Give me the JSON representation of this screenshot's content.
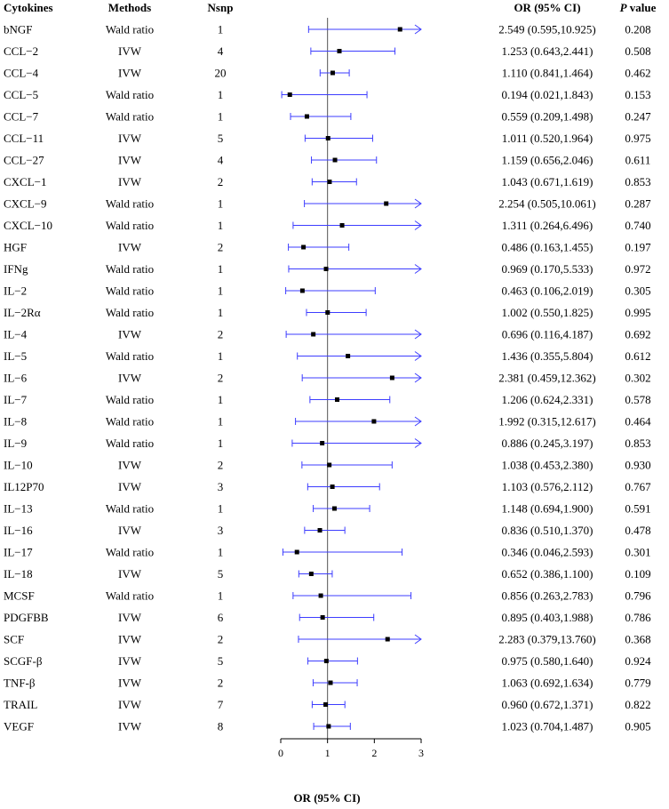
{
  "headers": {
    "cytokines": "Cytokines",
    "methods": "Methods",
    "nsnp": "Nsnp",
    "or": "OR (95% CI)",
    "p_italic": "P",
    "p_rest": " value"
  },
  "colors": {
    "ci_line": "#3d3dff",
    "point": "#000000",
    "ref_line": "#555555"
  },
  "chart_data": {
    "type": "forest",
    "xlabel": "OR (95% CI)",
    "xlim": [
      0,
      3
    ],
    "xticks": [
      "0",
      "1",
      "2",
      "3"
    ],
    "reference_line": 1,
    "rows": [
      {
        "cytokine": "bNGF",
        "method": "Wald ratio",
        "nsnp": "1",
        "or": 2.549,
        "lo": 0.595,
        "hi": 10.925,
        "or_text": "2.549 (0.595,10.925)",
        "p": "0.208"
      },
      {
        "cytokine": "CCL−2",
        "method": "IVW",
        "nsnp": "4",
        "or": 1.253,
        "lo": 0.643,
        "hi": 2.441,
        "or_text": "1.253 (0.643,2.441)",
        "p": "0.508"
      },
      {
        "cytokine": "CCL−4",
        "method": "IVW",
        "nsnp": "20",
        "or": 1.11,
        "lo": 0.841,
        "hi": 1.464,
        "or_text": "1.110 (0.841,1.464)",
        "p": "0.462"
      },
      {
        "cytokine": "CCL−5",
        "method": "Wald ratio",
        "nsnp": "1",
        "or": 0.194,
        "lo": 0.021,
        "hi": 1.843,
        "or_text": "0.194 (0.021,1.843)",
        "p": "0.153"
      },
      {
        "cytokine": "CCL−7",
        "method": "Wald ratio",
        "nsnp": "1",
        "or": 0.559,
        "lo": 0.209,
        "hi": 1.498,
        "or_text": "0.559 (0.209,1.498)",
        "p": "0.247"
      },
      {
        "cytokine": "CCL−11",
        "method": "IVW",
        "nsnp": "5",
        "or": 1.011,
        "lo": 0.52,
        "hi": 1.964,
        "or_text": "1.011 (0.520,1.964)",
        "p": "0.975"
      },
      {
        "cytokine": "CCL−27",
        "method": "IVW",
        "nsnp": "4",
        "or": 1.159,
        "lo": 0.656,
        "hi": 2.046,
        "or_text": "1.159 (0.656,2.046)",
        "p": "0.611"
      },
      {
        "cytokine": "CXCL−1",
        "method": "IVW",
        "nsnp": "2",
        "or": 1.043,
        "lo": 0.671,
        "hi": 1.619,
        "or_text": "1.043 (0.671,1.619)",
        "p": "0.853"
      },
      {
        "cytokine": "CXCL−9",
        "method": "Wald ratio",
        "nsnp": "1",
        "or": 2.254,
        "lo": 0.505,
        "hi": 10.061,
        "or_text": "2.254 (0.505,10.061)",
        "p": "0.287"
      },
      {
        "cytokine": "CXCL−10",
        "method": "Wald ratio",
        "nsnp": "1",
        "or": 1.311,
        "lo": 0.264,
        "hi": 6.496,
        "or_text": "1.311 (0.264,6.496)",
        "p": "0.740"
      },
      {
        "cytokine": "HGF",
        "method": "IVW",
        "nsnp": "2",
        "or": 0.486,
        "lo": 0.163,
        "hi": 1.455,
        "or_text": "0.486 (0.163,1.455)",
        "p": "0.197"
      },
      {
        "cytokine": "IFNg",
        "method": "Wald ratio",
        "nsnp": "1",
        "or": 0.969,
        "lo": 0.17,
        "hi": 5.533,
        "or_text": "0.969 (0.170,5.533)",
        "p": "0.972"
      },
      {
        "cytokine": "IL−2",
        "method": "Wald ratio",
        "nsnp": "1",
        "or": 0.463,
        "lo": 0.106,
        "hi": 2.019,
        "or_text": "0.463 (0.106,2.019)",
        "p": "0.305"
      },
      {
        "cytokine": "IL−2Rα",
        "method": "Wald ratio",
        "nsnp": "1",
        "or": 1.002,
        "lo": 0.55,
        "hi": 1.825,
        "or_text": "1.002 (0.550,1.825)",
        "p": "0.995"
      },
      {
        "cytokine": "IL−4",
        "method": "IVW",
        "nsnp": "2",
        "or": 0.696,
        "lo": 0.116,
        "hi": 4.187,
        "or_text": "0.696 (0.116,4.187)",
        "p": "0.692"
      },
      {
        "cytokine": "IL−5",
        "method": "Wald ratio",
        "nsnp": "1",
        "or": 1.436,
        "lo": 0.355,
        "hi": 5.804,
        "or_text": "1.436 (0.355,5.804)",
        "p": "0.612"
      },
      {
        "cytokine": "IL−6",
        "method": "IVW",
        "nsnp": "2",
        "or": 2.381,
        "lo": 0.459,
        "hi": 12.362,
        "or_text": "2.381 (0.459,12.362)",
        "p": "0.302"
      },
      {
        "cytokine": "IL−7",
        "method": "Wald ratio",
        "nsnp": "1",
        "or": 1.206,
        "lo": 0.624,
        "hi": 2.331,
        "or_text": "1.206 (0.624,2.331)",
        "p": "0.578"
      },
      {
        "cytokine": "IL−8",
        "method": "Wald ratio",
        "nsnp": "1",
        "or": 1.992,
        "lo": 0.315,
        "hi": 12.617,
        "or_text": "1.992 (0.315,12.617)",
        "p": "0.464"
      },
      {
        "cytokine": "IL−9",
        "method": "Wald ratio",
        "nsnp": "1",
        "or": 0.886,
        "lo": 0.245,
        "hi": 3.197,
        "or_text": "0.886 (0.245,3.197)",
        "p": "0.853"
      },
      {
        "cytokine": "IL−10",
        "method": "IVW",
        "nsnp": "2",
        "or": 1.038,
        "lo": 0.453,
        "hi": 2.38,
        "or_text": "1.038 (0.453,2.380)",
        "p": "0.930"
      },
      {
        "cytokine": "IL12P70",
        "method": "IVW",
        "nsnp": "3",
        "or": 1.103,
        "lo": 0.576,
        "hi": 2.112,
        "or_text": "1.103 (0.576,2.112)",
        "p": "0.767"
      },
      {
        "cytokine": "IL−13",
        "method": "Wald ratio",
        "nsnp": "1",
        "or": 1.148,
        "lo": 0.694,
        "hi": 1.9,
        "or_text": "1.148 (0.694,1.900)",
        "p": "0.591"
      },
      {
        "cytokine": "IL−16",
        "method": "IVW",
        "nsnp": "3",
        "or": 0.836,
        "lo": 0.51,
        "hi": 1.37,
        "or_text": "0.836 (0.510,1.370)",
        "p": "0.478"
      },
      {
        "cytokine": "IL−17",
        "method": "Wald ratio",
        "nsnp": "1",
        "or": 0.346,
        "lo": 0.046,
        "hi": 2.593,
        "or_text": "0.346 (0.046,2.593)",
        "p": "0.301"
      },
      {
        "cytokine": "IL−18",
        "method": "IVW",
        "nsnp": "5",
        "or": 0.652,
        "lo": 0.386,
        "hi": 1.1,
        "or_text": "0.652 (0.386,1.100)",
        "p": "0.109"
      },
      {
        "cytokine": "MCSF",
        "method": "Wald ratio",
        "nsnp": "1",
        "or": 0.856,
        "lo": 0.263,
        "hi": 2.783,
        "or_text": "0.856 (0.263,2.783)",
        "p": "0.796"
      },
      {
        "cytokine": "PDGFBB",
        "method": "IVW",
        "nsnp": "6",
        "or": 0.895,
        "lo": 0.403,
        "hi": 1.988,
        "or_text": "0.895 (0.403,1.988)",
        "p": "0.786"
      },
      {
        "cytokine": "SCF",
        "method": "IVW",
        "nsnp": "2",
        "or": 2.283,
        "lo": 0.379,
        "hi": 13.76,
        "or_text": "2.283 (0.379,13.760)",
        "p": "0.368"
      },
      {
        "cytokine": "SCGF-β",
        "method": "IVW",
        "nsnp": "5",
        "or": 0.975,
        "lo": 0.58,
        "hi": 1.64,
        "or_text": "0.975 (0.580,1.640)",
        "p": "0.924"
      },
      {
        "cytokine": "TNF-β",
        "method": "IVW",
        "nsnp": "2",
        "or": 1.063,
        "lo": 0.692,
        "hi": 1.634,
        "or_text": "1.063 (0.692,1.634)",
        "p": "0.779"
      },
      {
        "cytokine": "TRAIL",
        "method": "IVW",
        "nsnp": "7",
        "or": 0.96,
        "lo": 0.672,
        "hi": 1.371,
        "or_text": "0.960 (0.672,1.371)",
        "p": "0.822"
      },
      {
        "cytokine": "VEGF",
        "method": "IVW",
        "nsnp": "8",
        "or": 1.023,
        "lo": 0.704,
        "hi": 1.487,
        "or_text": "1.023 (0.704,1.487)",
        "p": "0.905"
      }
    ]
  }
}
